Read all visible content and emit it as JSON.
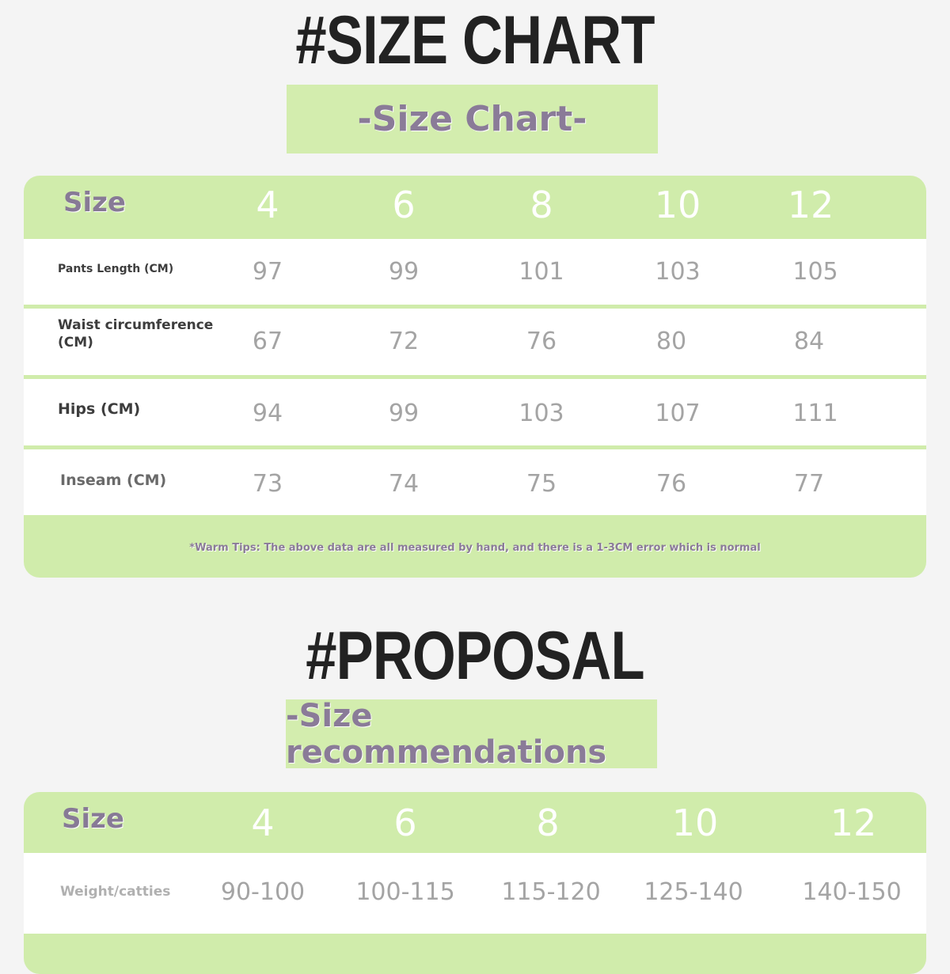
{
  "size_chart": {
    "title": "#SIZE CHART",
    "subtitle": "-Size Chart-",
    "header_label": "Size",
    "sizes": [
      "4",
      "6",
      "8",
      "10",
      "12"
    ],
    "rows": [
      {
        "label": "Pants Length (CM)",
        "values": [
          "97",
          "99",
          "101",
          "103",
          "105"
        ]
      },
      {
        "label": "Waist circumference (CM)",
        "values": [
          "67",
          "72",
          "76",
          "80",
          "84"
        ]
      },
      {
        "label": "Hips (CM)",
        "values": [
          "94",
          "99",
          "103",
          "107",
          "111"
        ]
      },
      {
        "label": "Inseam (CM)",
        "values": [
          "73",
          "74",
          "75",
          "76",
          "77"
        ]
      }
    ],
    "tip": "*Warm Tips: The above data are all measured by hand, and there is a 1-3CM error which is normal"
  },
  "proposal": {
    "title": "#PROPOSAL",
    "subtitle": "-Size recommendations",
    "header_label": "Size",
    "sizes": [
      "4",
      "6",
      "8",
      "10",
      "12"
    ],
    "rows": [
      {
        "label": "Weight/catties",
        "values": [
          "90-100",
          "100-115",
          "115-120",
          "125-140",
          "140-150"
        ]
      }
    ]
  },
  "colors": {
    "green": "#d0ecab",
    "purple": "#8a7b98",
    "background": "#f4f4f4"
  }
}
